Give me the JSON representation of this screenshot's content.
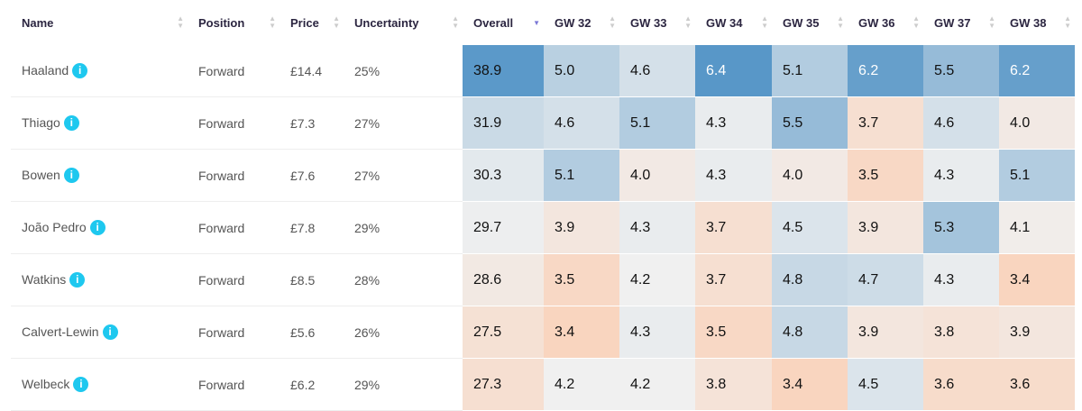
{
  "columns": [
    "Name",
    "Position",
    "Price",
    "Uncertainty",
    "Overall",
    "GW 32",
    "GW 33",
    "GW 34",
    "GW 35",
    "GW 36",
    "GW 37",
    "GW 38"
  ],
  "sorted_column": "Overall",
  "rows": [
    {
      "name": "Haaland",
      "position": "Forward",
      "price": "£14.4",
      "uncertainty": "25%",
      "overall": "38.9",
      "gw": [
        "5.0",
        "4.6",
        "6.4",
        "5.1",
        "6.2",
        "5.5",
        "6.2"
      ]
    },
    {
      "name": "Thiago",
      "position": "Forward",
      "price": "£7.3",
      "uncertainty": "27%",
      "overall": "31.9",
      "gw": [
        "4.6",
        "5.1",
        "4.3",
        "5.5",
        "3.7",
        "4.6",
        "4.0"
      ]
    },
    {
      "name": "Bowen",
      "position": "Forward",
      "price": "£7.6",
      "uncertainty": "27%",
      "overall": "30.3",
      "gw": [
        "5.1",
        "4.0",
        "4.3",
        "4.0",
        "3.5",
        "4.3",
        "5.1"
      ]
    },
    {
      "name": "João Pedro",
      "position": "Forward",
      "price": "£7.8",
      "uncertainty": "29%",
      "overall": "29.7",
      "gw": [
        "3.9",
        "4.3",
        "3.7",
        "4.5",
        "3.9",
        "5.3",
        "4.1"
      ]
    },
    {
      "name": "Watkins",
      "position": "Forward",
      "price": "£8.5",
      "uncertainty": "28%",
      "overall": "28.6",
      "gw": [
        "3.5",
        "4.2",
        "3.7",
        "4.8",
        "4.7",
        "4.3",
        "3.4"
      ]
    },
    {
      "name": "Calvert-Lewin",
      "position": "Forward",
      "price": "£5.6",
      "uncertainty": "26%",
      "overall": "27.5",
      "gw": [
        "3.4",
        "4.3",
        "3.5",
        "4.8",
        "3.9",
        "3.8",
        "3.9"
      ]
    },
    {
      "name": "Welbeck",
      "position": "Forward",
      "price": "£6.2",
      "uncertainty": "29%",
      "overall": "27.3",
      "gw": [
        "4.2",
        "4.2",
        "3.8",
        "3.4",
        "4.5",
        "3.6",
        "3.6"
      ]
    }
  ],
  "info_icon": "i",
  "colors": {
    "low": "#f9d5bf",
    "mid": "#f0f0f0",
    "high": "#4a8fc4"
  }
}
